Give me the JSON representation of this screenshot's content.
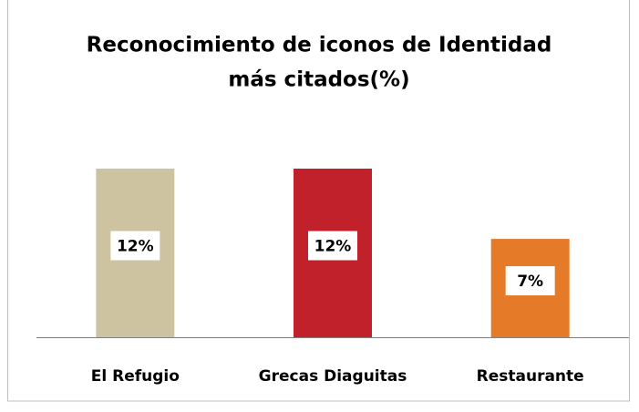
{
  "chart_data": {
    "type": "bar",
    "title": [
      "Reconocimiento de iconos de Identidad",
      "más citados(%)"
    ],
    "categories": [
      "El Refugio",
      "Grecas Diaguitas",
      "Restaurante"
    ],
    "values": [
      12,
      12,
      7
    ],
    "value_labels": [
      "12%",
      "12%",
      "7%"
    ],
    "colors": [
      "#cdc3a1",
      "#c0212a",
      "#e57a28"
    ]
  }
}
